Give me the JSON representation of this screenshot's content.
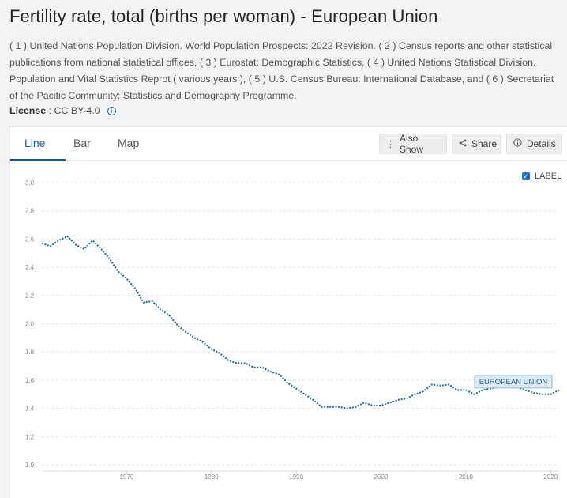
{
  "page": {
    "title": "Fertility rate, total (births per woman) - European Union",
    "source": "( 1 ) United Nations Population Division. World Population Prospects: 2022 Revision. ( 2 ) Census reports and other statistical publications from national statistical offices, ( 3 ) Eurostat: Demographic Statistics, ( 4 ) United Nations Statistical Division. Population and Vital Statistics Reprot ( various years ), ( 5 ) U.S. Census Bureau: International Database, and ( 6 ) Secretariat of the Pacific Community: Statistics and Demography Programme.",
    "license_label": "License",
    "license_value": ": CC BY-4.0",
    "info_icon": "info-icon"
  },
  "tabs": [
    {
      "label": "Line",
      "active": true
    },
    {
      "label": "Bar",
      "active": false
    },
    {
      "label": "Map",
      "active": false
    }
  ],
  "actions": {
    "also_show": "Also Show",
    "share": "Share",
    "details": "Details"
  },
  "legend": {
    "label": "LABEL",
    "checked": true
  },
  "colors": {
    "line": "#1c6aa3",
    "accent": "#1a5d96",
    "grid": "#e3e3e3"
  },
  "chart_data": {
    "type": "line",
    "title": "",
    "xlabel": "",
    "ylabel": "",
    "ylim": [
      1.0,
      3.0
    ],
    "xlim": [
      1960,
      2021
    ],
    "y_ticks": [
      "1.0",
      "1.2",
      "1.4",
      "1.6",
      "1.8",
      "2.0",
      "2.2",
      "2.4",
      "2.6",
      "2.8",
      "3.0"
    ],
    "x_ticks": [
      "1970",
      "1980",
      "1990",
      "2000",
      "2010",
      "2020"
    ],
    "line_style": "dotted",
    "series_label": "EUROPEAN UNION",
    "series": [
      {
        "name": "European Union",
        "x": [
          1960,
          1961,
          1962,
          1963,
          1964,
          1965,
          1966,
          1967,
          1968,
          1969,
          1970,
          1971,
          1972,
          1973,
          1974,
          1975,
          1976,
          1977,
          1978,
          1979,
          1980,
          1981,
          1982,
          1983,
          1984,
          1985,
          1986,
          1987,
          1988,
          1989,
          1990,
          1991,
          1992,
          1993,
          1994,
          1995,
          1996,
          1997,
          1998,
          1999,
          2000,
          2001,
          2002,
          2003,
          2004,
          2005,
          2006,
          2007,
          2008,
          2009,
          2010,
          2011,
          2012,
          2013,
          2014,
          2015,
          2016,
          2017,
          2018,
          2019,
          2020,
          2021
        ],
        "y": [
          2.57,
          2.55,
          2.59,
          2.62,
          2.56,
          2.53,
          2.59,
          2.53,
          2.46,
          2.37,
          2.32,
          2.25,
          2.15,
          2.16,
          2.1,
          2.06,
          1.99,
          1.94,
          1.9,
          1.87,
          1.82,
          1.79,
          1.74,
          1.72,
          1.72,
          1.69,
          1.69,
          1.66,
          1.64,
          1.58,
          1.54,
          1.5,
          1.46,
          1.41,
          1.41,
          1.41,
          1.4,
          1.41,
          1.44,
          1.42,
          1.42,
          1.44,
          1.46,
          1.47,
          1.5,
          1.52,
          1.57,
          1.56,
          1.57,
          1.53,
          1.53,
          1.5,
          1.53,
          1.54,
          1.56,
          1.56,
          1.55,
          1.53,
          1.51,
          1.5,
          1.5,
          1.53
        ]
      }
    ]
  }
}
